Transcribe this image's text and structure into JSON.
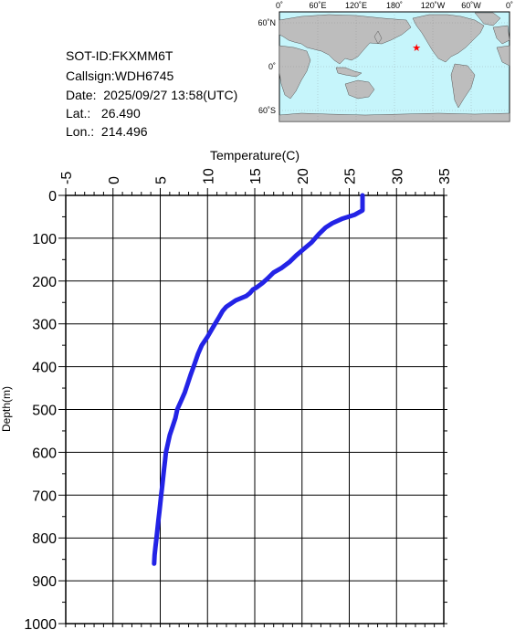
{
  "info": {
    "sot_id": "SOT-ID:FKXMM6T",
    "callsign": "Callsign:WDH6745",
    "date": "Date:  2025/09/27 13:58(UTC)",
    "lat": "Lat.:   26.490",
    "lon": "Lon.:  214.496"
  },
  "map": {
    "ocean_color": "#c6f5fb",
    "land_color": "#bdbdbd",
    "marker_color": "#ff0000",
    "marker": {
      "lat": 26.49,
      "lon": 214.496
    },
    "lon_labels": [
      "0˚",
      "60˚E",
      "120˚E",
      "180˚",
      "120˚W",
      "60˚W",
      "0˚"
    ],
    "lat_labels": [
      "60˚N",
      "0˚",
      "60˚S"
    ]
  },
  "chart_data": {
    "type": "line",
    "title": "",
    "xlabel": "Temperature(C)",
    "ylabel": "Depth(m)",
    "xlim": [
      -5,
      35
    ],
    "ylim": [
      1000,
      0
    ],
    "x_ticks": [
      "-5",
      "0",
      "5",
      "10",
      "15",
      "20",
      "25",
      "30",
      "35"
    ],
    "y_ticks": [
      "0",
      "100",
      "200",
      "300",
      "400",
      "500",
      "600",
      "700",
      "800",
      "900",
      "1000"
    ],
    "grid": true,
    "line_color": "#2323e6",
    "series": [
      {
        "x": [
          26.4,
          26.4,
          25.6,
          24.2,
          23.2,
          22.5,
          21.8,
          21.0,
          20.2,
          19.4,
          18.7,
          17.8,
          17.0,
          16.3,
          15.8,
          15.2,
          14.8,
          14.5,
          14.1,
          13.0,
          12.0,
          11.6,
          11.2,
          10.8,
          10.4,
          10.0,
          9.4,
          9.0,
          8.6,
          8.2,
          7.9,
          7.6,
          7.2,
          6.8,
          6.6,
          6.3,
          6.0,
          5.8,
          5.6,
          5.5,
          5.4,
          5.3,
          5.2,
          5.1,
          5.0,
          4.9,
          4.8,
          4.7,
          4.6,
          4.5,
          4.4,
          4.35
        ],
        "y": [
          0,
          35,
          45,
          55,
          65,
          75,
          90,
          110,
          125,
          140,
          155,
          170,
          180,
          195,
          205,
          215,
          220,
          228,
          235,
          245,
          260,
          270,
          285,
          300,
          315,
          330,
          350,
          370,
          395,
          420,
          440,
          460,
          480,
          500,
          520,
          540,
          560,
          580,
          600,
          620,
          640,
          660,
          680,
          700,
          720,
          740,
          760,
          780,
          800,
          820,
          840,
          860
        ]
      }
    ]
  }
}
